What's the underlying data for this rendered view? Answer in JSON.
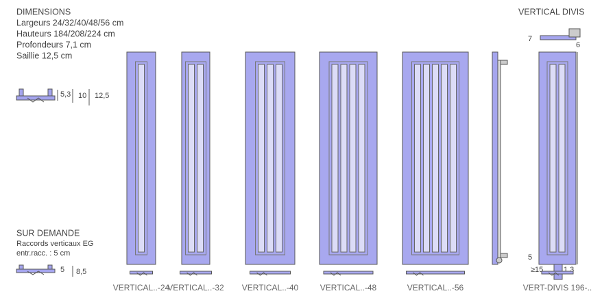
{
  "dimensions": {
    "title": "DIMENSIONS",
    "lines": [
      "Largeurs 24/32/40/48/56 cm",
      "Hauteurs 184/208/224 cm",
      "Profondeurs 7,1 cm",
      "Saillie 12,5 cm"
    ],
    "section_labels": [
      "5,3",
      "10",
      "12,5"
    ]
  },
  "on_request": {
    "title": "SUR DEMANDE",
    "lines": [
      "Raccords verticaux EG",
      "entr.racc. : 5 cm"
    ],
    "section_labels": [
      "5",
      "8,5"
    ]
  },
  "divis": {
    "title": "VERTICAL DIVIS",
    "top_labels": [
      "7",
      "6"
    ],
    "bottom_labels": [
      "5",
      "≥15",
      "1,3"
    ]
  },
  "models": [
    "VERTICAL..-24",
    "VERTICAL..-32",
    "VERTICAL..-40",
    "VERTICAL..-48",
    "VERTICAL..-56",
    "VERT-DIVIS 196-.."
  ]
}
